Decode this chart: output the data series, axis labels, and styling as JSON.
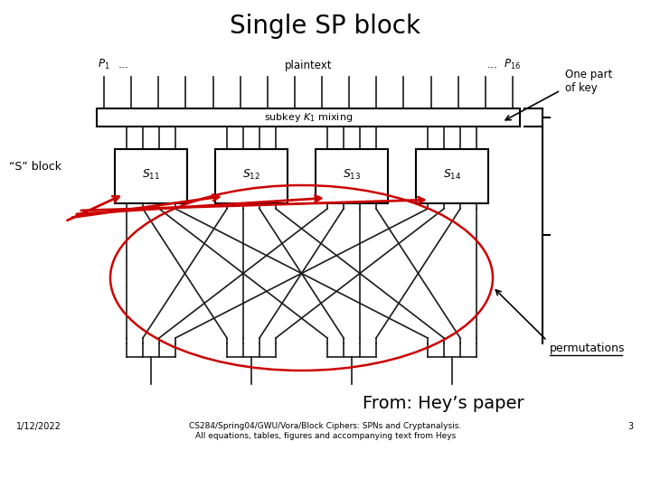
{
  "title": "Single SP block",
  "title_fontsize": 20,
  "bg_color": "#ffffff",
  "annotation_one_part": "One part\nof key",
  "annotation_s_block": "“S” block",
  "annotation_permutations": "permutations",
  "annotation_from": "From: Hey’s paper",
  "footer_date": "1/12/2022",
  "footer_center": "CS284/Spring04/GWU/Vora/Block Ciphers: SPNs and Cryptanalysis.\nAll equations, tables, figures and accompanying text from Heys",
  "footer_num": "3",
  "subkey_label": "subkey ",
  "subkey_label2": " mixing",
  "plaintext_label": "plaintext",
  "s_box_labels": [
    "S",
    "S",
    "S",
    "S"
  ],
  "s_box_subs": [
    "11",
    "12",
    "13",
    "14"
  ],
  "p1_label": "P",
  "p16_label": "P",
  "line_color": "#1a1a1a",
  "red_color": "#cc0000",
  "lw_main": 1.2
}
